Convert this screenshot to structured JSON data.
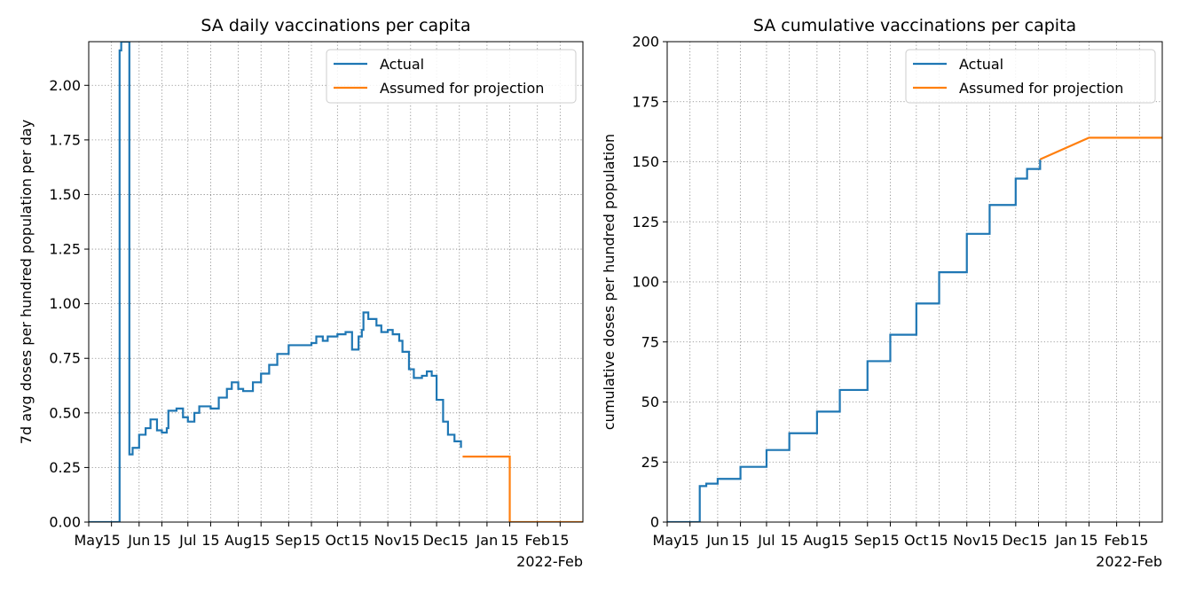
{
  "chart_data": [
    {
      "type": "line",
      "title": "SA daily vaccinations per capita",
      "xlabel": "",
      "ylabel": "7d avg doses per hundred population per day",
      "ylim": [
        0,
        2.2
      ],
      "yticks": [
        "0.00",
        "0.25",
        "0.50",
        "0.75",
        "1.00",
        "1.25",
        "1.50",
        "1.75",
        "2.00"
      ],
      "xlim": [
        "2021-05-01",
        "2022-03-01"
      ],
      "xtick_labels": [
        "May",
        "15",
        "Jun",
        "15",
        "Jul",
        "15",
        "Aug",
        "15",
        "Sep",
        "15",
        "Oct",
        "15",
        "Nov",
        "15",
        "Dec",
        "15",
        "Jan",
        "15",
        "Feb",
        "15"
      ],
      "x_offset_label": "2022-Feb",
      "grid": true,
      "legend": "top-right",
      "colors": {
        "actual": "#1f77b4",
        "projection": "#ff7f0e"
      },
      "series": [
        {
          "name": "Actual",
          "step": true,
          "points": [
            [
              "2021-05-01",
              0
            ],
            [
              "2021-05-20",
              0
            ],
            [
              "2021-05-20",
              2.16
            ],
            [
              "2021-05-21",
              2.2
            ],
            [
              "2021-05-26",
              2.2
            ],
            [
              "2021-05-26",
              0.31
            ],
            [
              "2021-05-28",
              0.34
            ],
            [
              "2021-06-01",
              0.4
            ],
            [
              "2021-06-05",
              0.43
            ],
            [
              "2021-06-08",
              0.47
            ],
            [
              "2021-06-10",
              0.47
            ],
            [
              "2021-06-12",
              0.42
            ],
            [
              "2021-06-15",
              0.41
            ],
            [
              "2021-06-18",
              0.43
            ],
            [
              "2021-06-19",
              0.51
            ],
            [
              "2021-06-24",
              0.52
            ],
            [
              "2021-06-27",
              0.52
            ],
            [
              "2021-06-28",
              0.48
            ],
            [
              "2021-07-01",
              0.46
            ],
            [
              "2021-07-05",
              0.5
            ],
            [
              "2021-07-08",
              0.53
            ],
            [
              "2021-07-15",
              0.52
            ],
            [
              "2021-07-20",
              0.57
            ],
            [
              "2021-07-25",
              0.61
            ],
            [
              "2021-07-28",
              0.64
            ],
            [
              "2021-08-01",
              0.61
            ],
            [
              "2021-08-04",
              0.6
            ],
            [
              "2021-08-10",
              0.64
            ],
            [
              "2021-08-15",
              0.68
            ],
            [
              "2021-08-20",
              0.72
            ],
            [
              "2021-08-25",
              0.77
            ],
            [
              "2021-09-01",
              0.81
            ],
            [
              "2021-09-10",
              0.81
            ],
            [
              "2021-09-15",
              0.82
            ],
            [
              "2021-09-18",
              0.85
            ],
            [
              "2021-09-22",
              0.83
            ],
            [
              "2021-09-25",
              0.85
            ],
            [
              "2021-10-01",
              0.86
            ],
            [
              "2021-10-06",
              0.87
            ],
            [
              "2021-10-08",
              0.87
            ],
            [
              "2021-10-10",
              0.79
            ],
            [
              "2021-10-14",
              0.85
            ],
            [
              "2021-10-16",
              0.88
            ],
            [
              "2021-10-17",
              0.96
            ],
            [
              "2021-10-20",
              0.93
            ],
            [
              "2021-10-25",
              0.9
            ],
            [
              "2021-10-28",
              0.87
            ],
            [
              "2021-11-01",
              0.88
            ],
            [
              "2021-11-04",
              0.86
            ],
            [
              "2021-11-08",
              0.83
            ],
            [
              "2021-11-10",
              0.78
            ],
            [
              "2021-11-14",
              0.7
            ],
            [
              "2021-11-17",
              0.66
            ],
            [
              "2021-11-22",
              0.67
            ],
            [
              "2021-11-25",
              0.69
            ],
            [
              "2021-11-28",
              0.67
            ],
            [
              "2021-12-01",
              0.56
            ],
            [
              "2021-12-05",
              0.46
            ],
            [
              "2021-12-08",
              0.4
            ],
            [
              "2021-12-12",
              0.37
            ],
            [
              "2021-12-16",
              0.34
            ]
          ]
        },
        {
          "name": "Assumed for projection",
          "step": true,
          "points": [
            [
              "2021-12-17",
              0.3
            ],
            [
              "2022-01-15",
              0.3
            ],
            [
              "2022-01-15",
              0
            ],
            [
              "2022-03-01",
              0
            ]
          ]
        }
      ]
    },
    {
      "type": "line",
      "title": "SA cumulative vaccinations per capita",
      "xlabel": "",
      "ylabel": "cumulative doses per hundred population",
      "ylim": [
        0,
        200
      ],
      "yticks": [
        "0",
        "25",
        "50",
        "75",
        "100",
        "125",
        "150",
        "175",
        "200"
      ],
      "xlim": [
        "2021-05-01",
        "2022-03-01"
      ],
      "xtick_labels": [
        "May",
        "15",
        "Jun",
        "15",
        "Jul",
        "15",
        "Aug",
        "15",
        "Sep",
        "15",
        "Oct",
        "15",
        "Nov",
        "15",
        "Dec",
        "15",
        "Jan",
        "15",
        "Feb",
        "15"
      ],
      "x_offset_label": "2022-Feb",
      "grid": true,
      "legend": "top-right",
      "colors": {
        "actual": "#1f77b4",
        "projection": "#ff7f0e"
      },
      "series": [
        {
          "name": "Actual",
          "step": true,
          "points": [
            [
              "2021-05-01",
              0
            ],
            [
              "2021-05-21",
              0
            ],
            [
              "2021-05-21",
              15
            ],
            [
              "2021-05-25",
              16
            ],
            [
              "2021-06-01",
              18
            ],
            [
              "2021-06-15",
              23
            ],
            [
              "2021-07-01",
              30
            ],
            [
              "2021-07-15",
              37
            ],
            [
              "2021-08-01",
              46
            ],
            [
              "2021-08-15",
              55
            ],
            [
              "2021-09-01",
              67
            ],
            [
              "2021-09-15",
              78
            ],
            [
              "2021-10-01",
              91
            ],
            [
              "2021-10-15",
              104
            ],
            [
              "2021-11-01",
              120
            ],
            [
              "2021-11-15",
              132
            ],
            [
              "2021-12-01",
              143
            ],
            [
              "2021-12-08",
              147
            ],
            [
              "2021-12-16",
              151
            ]
          ]
        },
        {
          "name": "Assumed for projection",
          "step": false,
          "points": [
            [
              "2021-12-16",
              151
            ],
            [
              "2022-01-15",
              160
            ],
            [
              "2022-03-01",
              160
            ]
          ]
        }
      ]
    }
  ]
}
